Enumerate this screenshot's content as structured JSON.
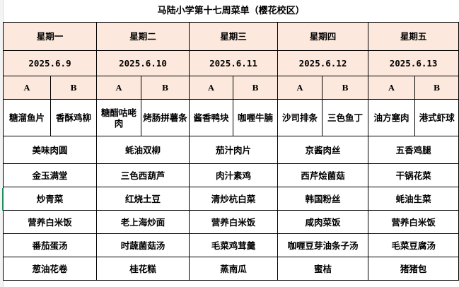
{
  "title": "马陆小学第十七周菜单（樱花校区）",
  "days": [
    {
      "name": "星期一",
      "date": "2025.6.9"
    },
    {
      "name": "星期二",
      "date": "2025.6.10"
    },
    {
      "name": "星期三",
      "date": "2025.6.11"
    },
    {
      "name": "星期四",
      "date": "2025.6.12"
    },
    {
      "name": "星期五",
      "date": "2025.6.13"
    }
  ],
  "option_labels": {
    "a": "A",
    "b": "B"
  },
  "main_dishes": [
    [
      "糖溜鱼片",
      "香酥鸡柳"
    ],
    [
      "糖醋咕咾肉",
      "烤肠拼薯条"
    ],
    [
      "酱香鸭块",
      "咖喱牛腩"
    ],
    [
      "沙司排条",
      "三色鱼丁"
    ],
    [
      "油方塞肉",
      "港式虾球"
    ]
  ],
  "rows": [
    [
      "美味肉圆",
      "蚝油双柳",
      "茄汁肉片",
      "京酱肉丝",
      "五香鸡腿"
    ],
    [
      "金玉满堂",
      "三色西葫芦",
      "肉汁素鸡",
      "西芹烩菌菇",
      "干锅花菜"
    ],
    [
      "炒青菜",
      "红烧土豆",
      "清炒杭白菜",
      "韩国粉丝",
      "蚝油生菜"
    ],
    [
      "营养白米饭",
      "老上海炒面",
      "营养白米饭",
      "咸肉菜饭",
      "营养白米饭"
    ],
    [
      "番茄蛋汤",
      "时蔬菌菇汤",
      "毛菜鸡茸羹",
      "咖喱豆芽油条子汤",
      "毛菜豆腐汤"
    ],
    [
      "葱油花卷",
      "桂花糕",
      "蒸南瓜",
      "蜜桔",
      "猪猪包"
    ]
  ],
  "colors": {
    "header_bg": "#fce8dc",
    "selection": "#1e8e5a"
  }
}
